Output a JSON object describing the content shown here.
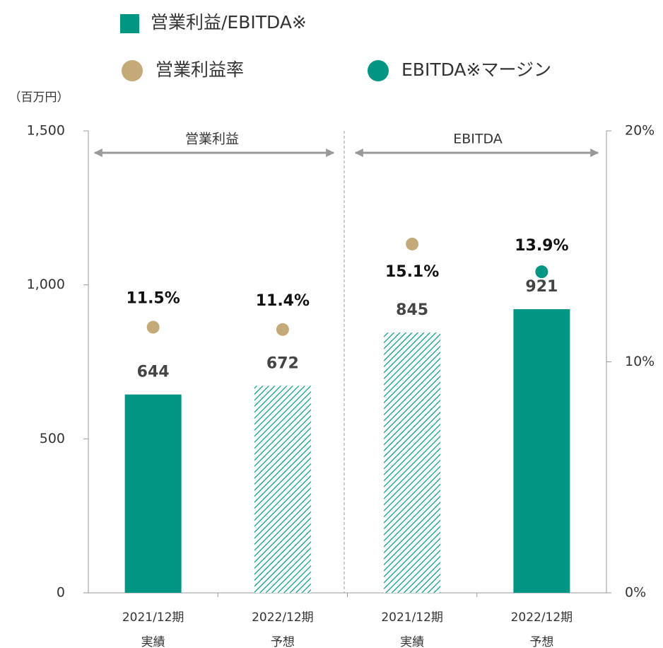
{
  "chart_data": {
    "type": "bar",
    "unit_label": "（百万円）",
    "section_labels": [
      "営業利益",
      "EBITDA"
    ],
    "categories": [
      "2021/12期",
      "2022/12期",
      "2021/12期",
      "2022/12期"
    ],
    "category_sublabels": [
      "実績",
      "予想",
      "実績",
      "予想"
    ],
    "series": [
      {
        "name": "営業利益/EBITDA※",
        "color": "#009683",
        "values": [
          644,
          672,
          845,
          921
        ],
        "patterns": [
          "solid",
          "hatch",
          "hatch",
          "solid"
        ]
      },
      {
        "name": "営業利益率",
        "color": "#c4aa78",
        "axis": "y2",
        "values": [
          11.5,
          11.4,
          15.1,
          null
        ],
        "value_labels": [
          "11.5%",
          "11.4%",
          "15.1%",
          null
        ]
      },
      {
        "name": "EBITDA※マージン",
        "color": "#009683",
        "axis": "y2",
        "values": [
          null,
          null,
          null,
          13.9
        ],
        "value_labels": [
          null,
          null,
          null,
          "13.9%"
        ]
      }
    ],
    "ylim": [
      0,
      1500
    ],
    "yticks": [
      0,
      500,
      {
        "value": 1000,
        "label": "1,000"
      },
      {
        "value": 1500,
        "label": "1,500"
      }
    ],
    "y2lim": [
      0,
      20
    ],
    "y2ticks": [
      {
        "value": 0,
        "label": "0%"
      },
      {
        "value": 10,
        "label": "10%"
      },
      {
        "value": 20,
        "label": "20%"
      }
    ]
  }
}
